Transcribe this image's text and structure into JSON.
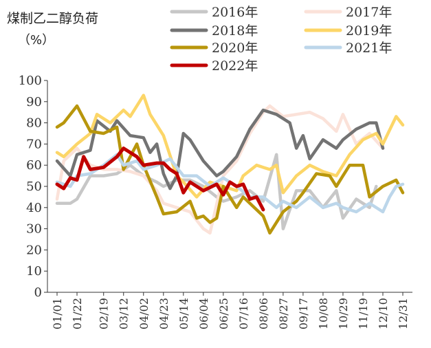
{
  "chart_data": {
    "type": "line",
    "title": "煤制乙二醇负荷",
    "ylabel": "（%）",
    "xlabel": "",
    "ylim": [
      0,
      100
    ],
    "yticks": [
      0,
      10,
      20,
      30,
      40,
      50,
      60,
      70,
      80,
      90,
      100
    ],
    "x_ticks": [
      "01/01",
      "01/22",
      "02/19",
      "03/12",
      "04/02",
      "04/23",
      "05/14",
      "06/04",
      "06/25",
      "07/16",
      "08/06",
      "08/27",
      "09/17",
      "10/08",
      "10/29",
      "11/19",
      "12/10",
      "12/31"
    ],
    "legend_position": "top",
    "grid": false,
    "series": [
      {
        "name": "2016年",
        "color": "#c7c7c7",
        "values": [
          [
            "01/01",
            42
          ],
          [
            "01/15",
            42
          ],
          [
            "01/22",
            44
          ],
          [
            "02/05",
            55
          ],
          [
            "02/19",
            55
          ],
          [
            "03/05",
            56
          ],
          [
            "03/19",
            60
          ],
          [
            "04/02",
            55
          ],
          [
            "04/16",
            52
          ],
          [
            "04/23",
            50
          ],
          [
            "05/07",
            53
          ],
          [
            "05/21",
            53
          ],
          [
            "06/04",
            50
          ],
          [
            "06/18",
            45
          ],
          [
            "06/25",
            43
          ],
          [
            "07/09",
            45
          ],
          [
            "07/23",
            48
          ],
          [
            "08/06",
            43
          ],
          [
            "08/20",
            65
          ],
          [
            "08/27",
            30
          ],
          [
            "09/10",
            48
          ],
          [
            "09/24",
            48
          ],
          [
            "10/08",
            40
          ],
          [
            "10/22",
            48
          ],
          [
            "10/29",
            35
          ],
          [
            "11/12",
            44
          ],
          [
            "11/26",
            40
          ],
          [
            "12/03",
            50
          ]
        ]
      },
      {
        "name": "2017年",
        "color": "#fbe2d9",
        "values": [
          [
            "01/01",
            44
          ],
          [
            "01/08",
            62
          ],
          [
            "01/22",
            68
          ],
          [
            "02/05",
            60
          ],
          [
            "02/19",
            58
          ],
          [
            "03/05",
            58
          ],
          [
            "03/19",
            57
          ],
          [
            "04/02",
            55
          ],
          [
            "04/16",
            48
          ],
          [
            "04/23",
            42
          ],
          [
            "05/07",
            40
          ],
          [
            "05/21",
            38
          ],
          [
            "06/04",
            30
          ],
          [
            "06/11",
            28
          ],
          [
            "06/25",
            55
          ],
          [
            "07/09",
            62
          ],
          [
            "07/23",
            75
          ],
          [
            "08/06",
            85
          ],
          [
            "08/13",
            88
          ],
          [
            "08/27",
            83
          ],
          [
            "09/10",
            84
          ],
          [
            "09/24",
            85
          ],
          [
            "10/08",
            82
          ],
          [
            "10/22",
            76
          ],
          [
            "10/29",
            84
          ],
          [
            "11/12",
            70
          ],
          [
            "11/26",
            75
          ],
          [
            "12/10",
            68
          ]
        ]
      },
      {
        "name": "2018年",
        "color": "#737373",
        "values": [
          [
            "01/01",
            62
          ],
          [
            "01/15",
            55
          ],
          [
            "01/22",
            65
          ],
          [
            "02/05",
            67
          ],
          [
            "02/12",
            81
          ],
          [
            "02/26",
            76
          ],
          [
            "03/05",
            81
          ],
          [
            "03/19",
            74
          ],
          [
            "04/02",
            73
          ],
          [
            "04/09",
            66
          ],
          [
            "04/16",
            70
          ],
          [
            "04/23",
            56
          ],
          [
            "04/30",
            49
          ],
          [
            "05/07",
            55
          ],
          [
            "05/14",
            75
          ],
          [
            "05/21",
            72
          ],
          [
            "06/04",
            62
          ],
          [
            "06/18",
            55
          ],
          [
            "06/25",
            57
          ],
          [
            "07/09",
            64
          ],
          [
            "07/23",
            77
          ],
          [
            "08/06",
            86
          ],
          [
            "08/20",
            84
          ],
          [
            "09/03",
            80
          ],
          [
            "09/10",
            68
          ],
          [
            "09/17",
            74
          ],
          [
            "09/24",
            63
          ],
          [
            "10/08",
            72
          ],
          [
            "10/22",
            68
          ],
          [
            "10/29",
            72
          ],
          [
            "11/12",
            77
          ],
          [
            "11/26",
            80
          ],
          [
            "12/03",
            80
          ],
          [
            "12/10",
            68
          ]
        ]
      },
      {
        "name": "2019年",
        "color": "#fcd668",
        "values": [
          [
            "01/01",
            66
          ],
          [
            "01/08",
            64
          ],
          [
            "01/22",
            70
          ],
          [
            "02/05",
            75
          ],
          [
            "02/12",
            84
          ],
          [
            "02/26",
            80
          ],
          [
            "03/12",
            86
          ],
          [
            "03/19",
            83
          ],
          [
            "04/02",
            93
          ],
          [
            "04/09",
            84
          ],
          [
            "04/23",
            74
          ],
          [
            "05/07",
            55
          ],
          [
            "05/14",
            52
          ],
          [
            "05/28",
            45
          ],
          [
            "06/11",
            52
          ],
          [
            "06/25",
            50
          ],
          [
            "07/09",
            48
          ],
          [
            "07/16",
            55
          ],
          [
            "07/30",
            60
          ],
          [
            "08/13",
            58
          ],
          [
            "08/20",
            60
          ],
          [
            "08/27",
            47
          ],
          [
            "09/10",
            55
          ],
          [
            "09/24",
            60
          ],
          [
            "10/08",
            57
          ],
          [
            "10/22",
            55
          ],
          [
            "11/05",
            65
          ],
          [
            "11/19",
            72
          ],
          [
            "12/03",
            75
          ],
          [
            "12/10",
            70
          ],
          [
            "12/24",
            83
          ],
          [
            "12/31",
            79
          ]
        ]
      },
      {
        "name": "2020年",
        "color": "#b8960c",
        "values": [
          [
            "01/01",
            78
          ],
          [
            "01/08",
            80
          ],
          [
            "01/22",
            88
          ],
          [
            "02/05",
            76
          ],
          [
            "02/19",
            75
          ],
          [
            "03/05",
            78
          ],
          [
            "03/12",
            58
          ],
          [
            "03/26",
            70
          ],
          [
            "04/02",
            60
          ],
          [
            "04/16",
            45
          ],
          [
            "04/23",
            37
          ],
          [
            "05/07",
            38
          ],
          [
            "05/21",
            43
          ],
          [
            "05/28",
            35
          ],
          [
            "06/04",
            36
          ],
          [
            "06/11",
            33
          ],
          [
            "06/18",
            35
          ],
          [
            "06/25",
            50
          ],
          [
            "07/09",
            40
          ],
          [
            "07/16",
            45
          ],
          [
            "07/23",
            42
          ],
          [
            "08/06",
            36
          ],
          [
            "08/13",
            28
          ],
          [
            "08/27",
            38
          ],
          [
            "09/10",
            43
          ],
          [
            "09/17",
            47
          ],
          [
            "10/01",
            56
          ],
          [
            "10/15",
            55
          ],
          [
            "10/22",
            50
          ],
          [
            "10/29",
            55
          ],
          [
            "11/05",
            60
          ],
          [
            "11/19",
            60
          ],
          [
            "11/26",
            45
          ],
          [
            "12/10",
            50
          ],
          [
            "12/24",
            53
          ],
          [
            "12/31",
            47
          ]
        ]
      },
      {
        "name": "2021年",
        "color": "#bcd6ea",
        "values": [
          [
            "01/01",
            52
          ],
          [
            "01/15",
            50
          ],
          [
            "01/22",
            55
          ],
          [
            "02/05",
            56
          ],
          [
            "02/19",
            60
          ],
          [
            "03/05",
            65
          ],
          [
            "03/12",
            60
          ],
          [
            "03/26",
            62
          ],
          [
            "04/02",
            58
          ],
          [
            "04/16",
            60
          ],
          [
            "04/30",
            63
          ],
          [
            "05/14",
            55
          ],
          [
            "05/28",
            55
          ],
          [
            "06/11",
            50
          ],
          [
            "06/25",
            54
          ],
          [
            "07/09",
            50
          ],
          [
            "07/23",
            45
          ],
          [
            "08/06",
            45
          ],
          [
            "08/20",
            40
          ],
          [
            "08/27",
            43
          ],
          [
            "09/10",
            40
          ],
          [
            "09/24",
            45
          ],
          [
            "10/08",
            40
          ],
          [
            "10/22",
            42
          ],
          [
            "10/29",
            40
          ],
          [
            "11/12",
            38
          ],
          [
            "11/26",
            42
          ],
          [
            "12/10",
            38
          ],
          [
            "12/17",
            45
          ],
          [
            "12/24",
            50
          ],
          [
            "12/31",
            51
          ]
        ]
      },
      {
        "name": "2022年",
        "color": "#c00000",
        "values": [
          [
            "01/01",
            51
          ],
          [
            "01/08",
            49
          ],
          [
            "01/15",
            54
          ],
          [
            "01/22",
            53
          ],
          [
            "01/29",
            64
          ],
          [
            "02/05",
            58
          ],
          [
            "02/19",
            59
          ],
          [
            "03/05",
            64
          ],
          [
            "03/12",
            68
          ],
          [
            "03/26",
            64
          ],
          [
            "04/02",
            60
          ],
          [
            "04/16",
            61
          ],
          [
            "04/23",
            61
          ],
          [
            "04/30",
            58
          ],
          [
            "05/07",
            56
          ],
          [
            "05/14",
            47
          ],
          [
            "05/21",
            52
          ],
          [
            "06/04",
            48
          ],
          [
            "06/18",
            51
          ],
          [
            "06/25",
            46
          ],
          [
            "07/02",
            52
          ],
          [
            "07/09",
            50
          ],
          [
            "07/16",
            51
          ],
          [
            "07/23",
            44
          ],
          [
            "07/30",
            45
          ],
          [
            "08/06",
            39
          ]
        ]
      }
    ]
  }
}
